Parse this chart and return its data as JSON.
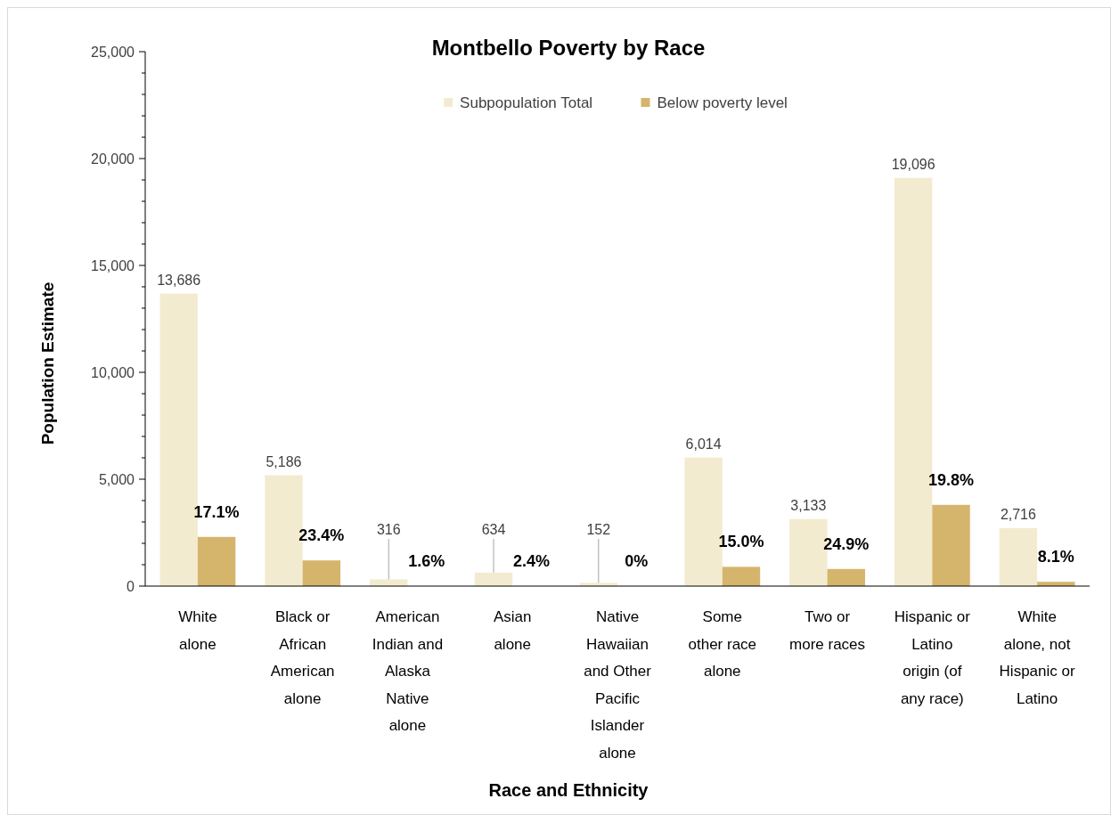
{
  "chart_data": {
    "type": "bar",
    "title": "Montbello Poverty by Race",
    "xlabel": "Race and Ethnicity",
    "ylabel": "Population Estimate",
    "categories": [
      "White alone",
      "Black or African American alone",
      "American Indian and Alaska Native alone",
      "Asian alone",
      "Native Hawaiian and Other Pacific Islander alone",
      "Some other race alone",
      "Two or more races",
      "Hispanic or Latino origin (of any race)",
      "White alone, not Hispanic or Latino"
    ],
    "series": [
      {
        "name": "Subpopulation Total",
        "color": "#f3ebcf",
        "values": [
          13686,
          5186,
          316,
          634,
          152,
          6014,
          3133,
          19096,
          2716
        ],
        "value_labels": [
          "13,686",
          "5,186",
          "316",
          "634",
          "152",
          "6,014",
          "3,133",
          "19,096",
          "2,716"
        ]
      },
      {
        "name": "Below poverty level",
        "color": "#d5b46c",
        "values": [
          2300,
          1200,
          0,
          0,
          0,
          900,
          800,
          3800,
          200
        ]
      }
    ],
    "annotations": [
      {
        "text": "17.1%",
        "x": "White alone",
        "y": 2300
      },
      {
        "text": "23.4%",
        "x": "Black or African American alone",
        "y": 1200
      },
      {
        "text": "1.6%",
        "x": "American Indian and Alaska Native alone",
        "y": 0
      },
      {
        "text": "2.4%",
        "x": "Asian alone",
        "y": 0
      },
      {
        "text": "0%",
        "x": "Native Hawaiian and Other Pacific Islander alone",
        "y": 0
      },
      {
        "text": "15.0%",
        "x": "Some other race alone",
        "y": 900
      },
      {
        "text": "24.9%",
        "x": "Two or more races",
        "y": 800
      },
      {
        "text": "19.8%",
        "x": "Hispanic or Latino origin (of any race)",
        "y": 3800
      },
      {
        "text": "8.1%",
        "x": "White alone, not Hispanic or Latino",
        "y": 200
      }
    ],
    "ylim": [
      0,
      25000
    ],
    "yticks": [
      0,
      {
        "value": 1000,
        "label": null
      },
      {
        "value": 2000,
        "label": null
      },
      {
        "value": 3000,
        "label": null
      },
      {
        "value": 4000,
        "label": null
      },
      {
        "value": 5000,
        "label": "5,000"
      },
      {
        "value": 6000,
        "label": null
      },
      {
        "value": 7000,
        "label": null
      },
      {
        "value": 8000,
        "label": null
      },
      {
        "value": 9000,
        "label": null
      },
      {
        "value": 10000,
        "label": "10,000"
      },
      {
        "value": 11000,
        "label": null
      },
      {
        "value": 12000,
        "label": null
      },
      {
        "value": 13000,
        "label": null
      },
      {
        "value": 14000,
        "label": null
      },
      {
        "value": 15000,
        "label": "15,000"
      },
      {
        "value": 16000,
        "label": null
      },
      {
        "value": 17000,
        "label": null
      },
      {
        "value": 18000,
        "label": null
      },
      {
        "value": 19000,
        "label": null
      },
      {
        "value": 20000,
        "label": "20,000"
      },
      {
        "value": 21000,
        "label": null
      },
      {
        "value": 22000,
        "label": null
      },
      {
        "value": 23000,
        "label": null
      },
      {
        "value": 24000,
        "label": null
      },
      {
        "value": 25000,
        "label": "25,000"
      }
    ],
    "grid": false,
    "legend": "top"
  }
}
